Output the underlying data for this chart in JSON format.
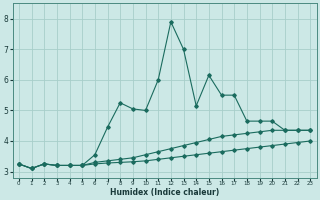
{
  "xlabel": "Humidex (Indice chaleur)",
  "xlim": [
    -0.5,
    23.5
  ],
  "ylim": [
    2.8,
    8.5
  ],
  "yticks": [
    3,
    4,
    5,
    6,
    7,
    8
  ],
  "xticks": [
    0,
    1,
    2,
    3,
    4,
    5,
    6,
    7,
    8,
    9,
    10,
    11,
    12,
    13,
    14,
    15,
    16,
    17,
    18,
    19,
    20,
    21,
    22,
    23
  ],
  "background_color": "#cce8e6",
  "grid_color": "#a8ceca",
  "line_color": "#1a6b5e",
  "series": [
    {
      "x": [
        0,
        1,
        2,
        3,
        4,
        5,
        6,
        7,
        8,
        9,
        10,
        11,
        12,
        13,
        14,
        15,
        16,
        17,
        18,
        19,
        20,
        21,
        22,
        23
      ],
      "y": [
        3.25,
        3.1,
        3.25,
        3.2,
        3.2,
        3.2,
        3.55,
        4.45,
        5.25,
        5.05,
        5.0,
        6.0,
        7.9,
        7.0,
        5.15,
        6.15,
        5.5,
        5.5,
        4.65,
        4.65,
        4.65,
        4.35,
        4.35,
        4.35
      ]
    },
    {
      "x": [
        0,
        1,
        2,
        3,
        4,
        5,
        6,
        7,
        8,
        9,
        10,
        11,
        12,
        13,
        14,
        15,
        16,
        17,
        18,
        19,
        20,
        21,
        22,
        23
      ],
      "y": [
        3.25,
        3.1,
        3.25,
        3.2,
        3.2,
        3.2,
        3.3,
        3.35,
        3.4,
        3.45,
        3.55,
        3.65,
        3.75,
        3.85,
        3.95,
        4.05,
        4.15,
        4.2,
        4.25,
        4.3,
        4.35,
        4.35,
        4.35,
        4.35
      ]
    },
    {
      "x": [
        0,
        1,
        2,
        3,
        4,
        5,
        6,
        7,
        8,
        9,
        10,
        11,
        12,
        13,
        14,
        15,
        16,
        17,
        18,
        19,
        20,
        21,
        22,
        23
      ],
      "y": [
        3.25,
        3.1,
        3.25,
        3.2,
        3.2,
        3.2,
        3.25,
        3.28,
        3.3,
        3.32,
        3.35,
        3.4,
        3.45,
        3.5,
        3.55,
        3.6,
        3.65,
        3.7,
        3.75,
        3.8,
        3.85,
        3.9,
        3.95,
        4.0
      ]
    }
  ]
}
